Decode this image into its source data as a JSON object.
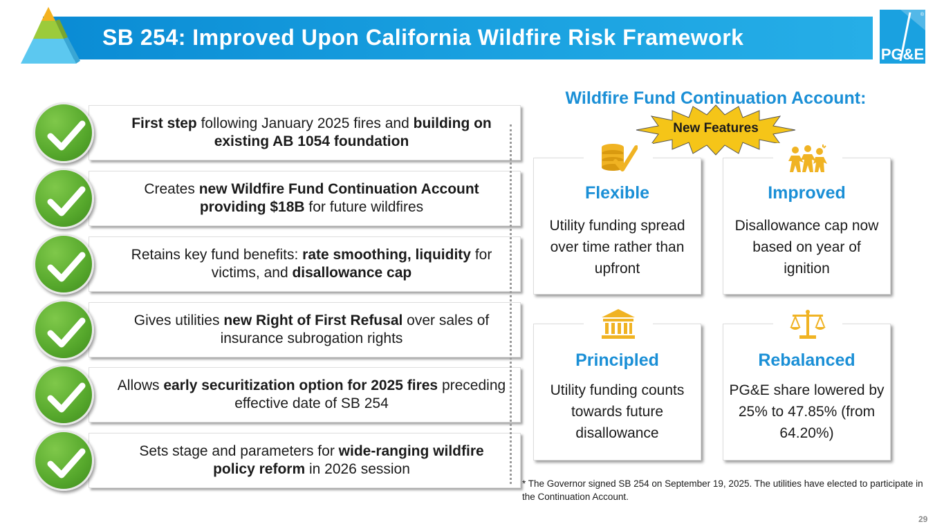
{
  "header": {
    "title": "SB 254: Improved Upon California Wildfire Risk Framework",
    "logo_text": "PG&E",
    "logo_mark": "®"
  },
  "left_items": [
    {
      "parts": [
        {
          "t": "First step",
          "b": true
        },
        {
          "t": " following January 2025 fires and ",
          "b": false
        },
        {
          "t": "building on existing AB 1054 foundation",
          "b": true
        }
      ]
    },
    {
      "parts": [
        {
          "t": "Creates ",
          "b": false
        },
        {
          "t": "new Wildfire Fund Continuation Account providing $18B",
          "b": true
        },
        {
          "t": " for future wildfires",
          "b": false
        }
      ]
    },
    {
      "parts": [
        {
          "t": "Retains key fund benefits: ",
          "b": false
        },
        {
          "t": "rate smoothing, liquidity",
          "b": true
        },
        {
          "t": " for victims, and ",
          "b": false
        },
        {
          "t": "disallowance cap",
          "b": true
        }
      ]
    },
    {
      "parts": [
        {
          "t": "Gives utilities ",
          "b": false
        },
        {
          "t": "new Right of First Refusal",
          "b": true
        },
        {
          "t": " over sales of insurance subrogation rights",
          "b": false
        }
      ]
    },
    {
      "parts": [
        {
          "t": "Allows ",
          "b": false
        },
        {
          "t": "early securitization option for 2025 fires",
          "b": true
        },
        {
          "t": " preceding effective date of SB 254",
          "b": false
        }
      ]
    },
    {
      "parts": [
        {
          "t": "Sets stage and parameters for ",
          "b": false
        },
        {
          "t": "wide-ranging wildfire policy reform",
          "b": true
        },
        {
          "t": " in 2026 session",
          "b": false
        }
      ]
    }
  ],
  "right": {
    "heading": "Wildfire Fund Continuation Account:",
    "badge": "New Features",
    "features": [
      {
        "title": "Flexible",
        "body": "Utility funding spread over time rather than upfront",
        "icon": "coins-check-icon"
      },
      {
        "title": "Improved",
        "body": "Disallowance cap now based on year of ignition",
        "icon": "people-icon"
      },
      {
        "title": "Principled",
        "body": "Utility funding counts towards future disallowance",
        "icon": "bank-icon"
      },
      {
        "title": "Rebalanced",
        "body": "PG&E share lowered by 25% to 47.85% (from 64.20%)",
        "icon": "scales-icon"
      }
    ]
  },
  "footnote": "* The Governor signed SB 254 on September 19, 2025. The utilities have elected to participate in the Continuation Account.",
  "page_number": "29",
  "colors": {
    "accent_blue": "#1a8fd6",
    "check_green": "#56a82c",
    "badge_yellow": "#f5c518",
    "icon_gold": "#f0b323"
  }
}
